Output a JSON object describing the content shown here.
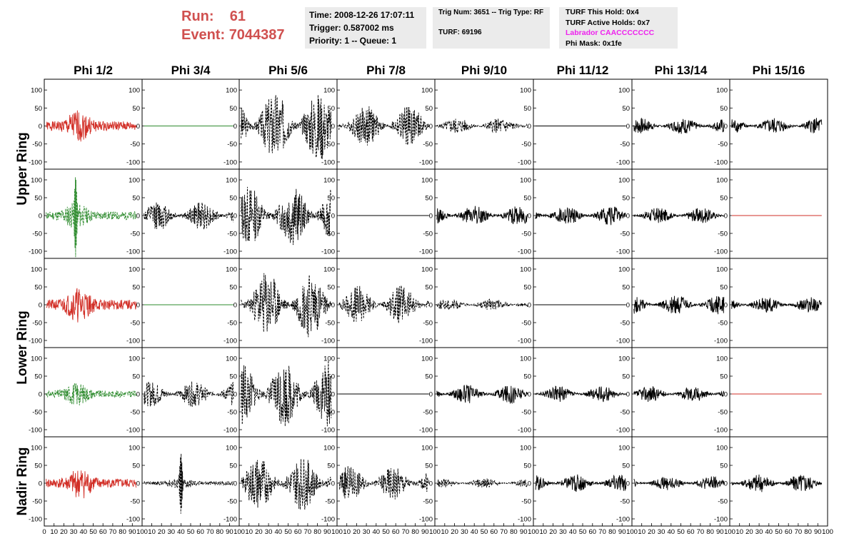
{
  "header": {
    "run_label": "Run:",
    "run_value": "61",
    "event_label": "Event:",
    "event_value": "7044387"
  },
  "info": {
    "time": "Time: 2008-12-26 17:07:11",
    "trigger": "Trigger: 0.587002 ms",
    "priority": "Priority: 1 -- Queue: 1",
    "trig": "Trig Num: 3651 -- Trig Type: RF",
    "turf": "TURF: 69196",
    "turf_hold": "TURF This Hold: 0x4",
    "turf_active": "TURF Active Holds: 0x7",
    "labrador": "Labrador CAACCCCCCC",
    "phi_mask": "Phi Mask: 0x1fe"
  },
  "colors": {
    "red": "#d22f27",
    "green": "#2e8b2e",
    "black": "#000000",
    "header_red": "#d0504f",
    "magenta": "#ee22ee"
  },
  "chart_data": {
    "type": "line",
    "columns": [
      "Phi 1/2",
      "Phi 3/4",
      "Phi 5/6",
      "Phi 7/8",
      "Phi 9/10",
      "Phi 11/12",
      "Phi 13/14",
      "Phi 15/16"
    ],
    "ring_labels": [
      "Upper Ring",
      "Lower Ring",
      "Nadir Ring"
    ],
    "ring_row_spans": [
      [
        0,
        1
      ],
      [
        2,
        3
      ],
      [
        4,
        4
      ]
    ],
    "xlim": [
      0,
      100
    ],
    "ylim": [
      -120,
      130
    ],
    "y_ticks": [
      -100,
      -50,
      0,
      50,
      100
    ],
    "x_tick_labels": [
      "0",
      "10",
      "20",
      "30",
      "40",
      "50",
      "60",
      "70",
      "80",
      "90",
      "100"
    ],
    "grid": false,
    "panels": [
      [
        {
          "color": "red",
          "style": "solid",
          "amp": 40,
          "burst": 35,
          "seed": 1
        },
        {
          "color": "green",
          "style": "solid",
          "amp": 0,
          "seed": 2
        },
        {
          "color": "black",
          "style": "dashed",
          "amp": 110,
          "seed": 3
        },
        {
          "color": "black",
          "style": "dashed",
          "amp": 65,
          "seed": 4
        },
        {
          "color": "black",
          "style": "dashed",
          "amp": 25,
          "seed": 5
        },
        {
          "color": "black",
          "style": "solid",
          "amp": 0,
          "seed": 6
        },
        {
          "color": "black",
          "style": "solid",
          "amp": 25,
          "seed": 7
        },
        {
          "color": "black",
          "style": "solid",
          "amp": 25,
          "seed": 8
        }
      ],
      [
        {
          "color": "green",
          "style": "dashed",
          "amp": 35,
          "burst": 32,
          "spike": 120,
          "seed": 11
        },
        {
          "color": "black",
          "style": "dashed",
          "amp": 45,
          "seed": 12
        },
        {
          "color": "black",
          "style": "dashed",
          "amp": 95,
          "seed": 13
        },
        {
          "color": "black",
          "style": "solid",
          "amp": 0,
          "seed": 14
        },
        {
          "color": "black",
          "style": "solid",
          "amp": 30,
          "seed": 15
        },
        {
          "color": "black",
          "style": "solid",
          "amp": 30,
          "seed": 16
        },
        {
          "color": "black",
          "style": "solid",
          "amp": 25,
          "seed": 17
        },
        {
          "color": "red",
          "style": "solid",
          "amp": 0,
          "seed": 18
        }
      ],
      [
        {
          "color": "red",
          "style": "solid",
          "amp": 45,
          "burst": 35,
          "seed": 21
        },
        {
          "color": "green",
          "style": "solid",
          "amp": 0,
          "seed": 22
        },
        {
          "color": "black",
          "style": "dashed",
          "amp": 105,
          "seed": 23
        },
        {
          "color": "black",
          "style": "dashed",
          "amp": 60,
          "seed": 24
        },
        {
          "color": "black",
          "style": "dashed",
          "amp": 18,
          "seed": 25
        },
        {
          "color": "black",
          "style": "solid",
          "amp": 0,
          "seed": 26
        },
        {
          "color": "black",
          "style": "solid",
          "amp": 30,
          "seed": 27
        },
        {
          "color": "black",
          "style": "solid",
          "amp": 25,
          "seed": 28
        }
      ],
      [
        {
          "color": "green",
          "style": "dashed",
          "amp": 30,
          "burst": 33,
          "seed": 31
        },
        {
          "color": "black",
          "style": "dashed",
          "amp": 40,
          "seed": 32
        },
        {
          "color": "black",
          "style": "dashed",
          "amp": 105,
          "seed": 33
        },
        {
          "color": "black",
          "style": "solid",
          "amp": 0,
          "seed": 34
        },
        {
          "color": "black",
          "style": "solid",
          "amp": 30,
          "seed": 35
        },
        {
          "color": "black",
          "style": "solid",
          "amp": 25,
          "seed": 36
        },
        {
          "color": "black",
          "style": "solid",
          "amp": 25,
          "seed": 37
        },
        {
          "color": "red",
          "style": "solid",
          "amp": 0,
          "seed": 38
        }
      ],
      [
        {
          "color": "red",
          "style": "solid",
          "amp": 40,
          "burst": 37,
          "seed": 41
        },
        {
          "color": "black",
          "style": "dashed",
          "amp": 15,
          "burst": 40,
          "spike": 90,
          "seed": 42
        },
        {
          "color": "black",
          "style": "dashed",
          "amp": 85,
          "seed": 43
        },
        {
          "color": "black",
          "style": "dashed",
          "amp": 55,
          "seed": 44
        },
        {
          "color": "black",
          "style": "dashed",
          "amp": 15,
          "seed": 45
        },
        {
          "color": "black",
          "style": "solid",
          "amp": 28,
          "seed": 46
        },
        {
          "color": "black",
          "style": "solid",
          "amp": 22,
          "seed": 47
        },
        {
          "color": "black",
          "style": "solid",
          "amp": 30,
          "seed": 48
        }
      ]
    ]
  }
}
